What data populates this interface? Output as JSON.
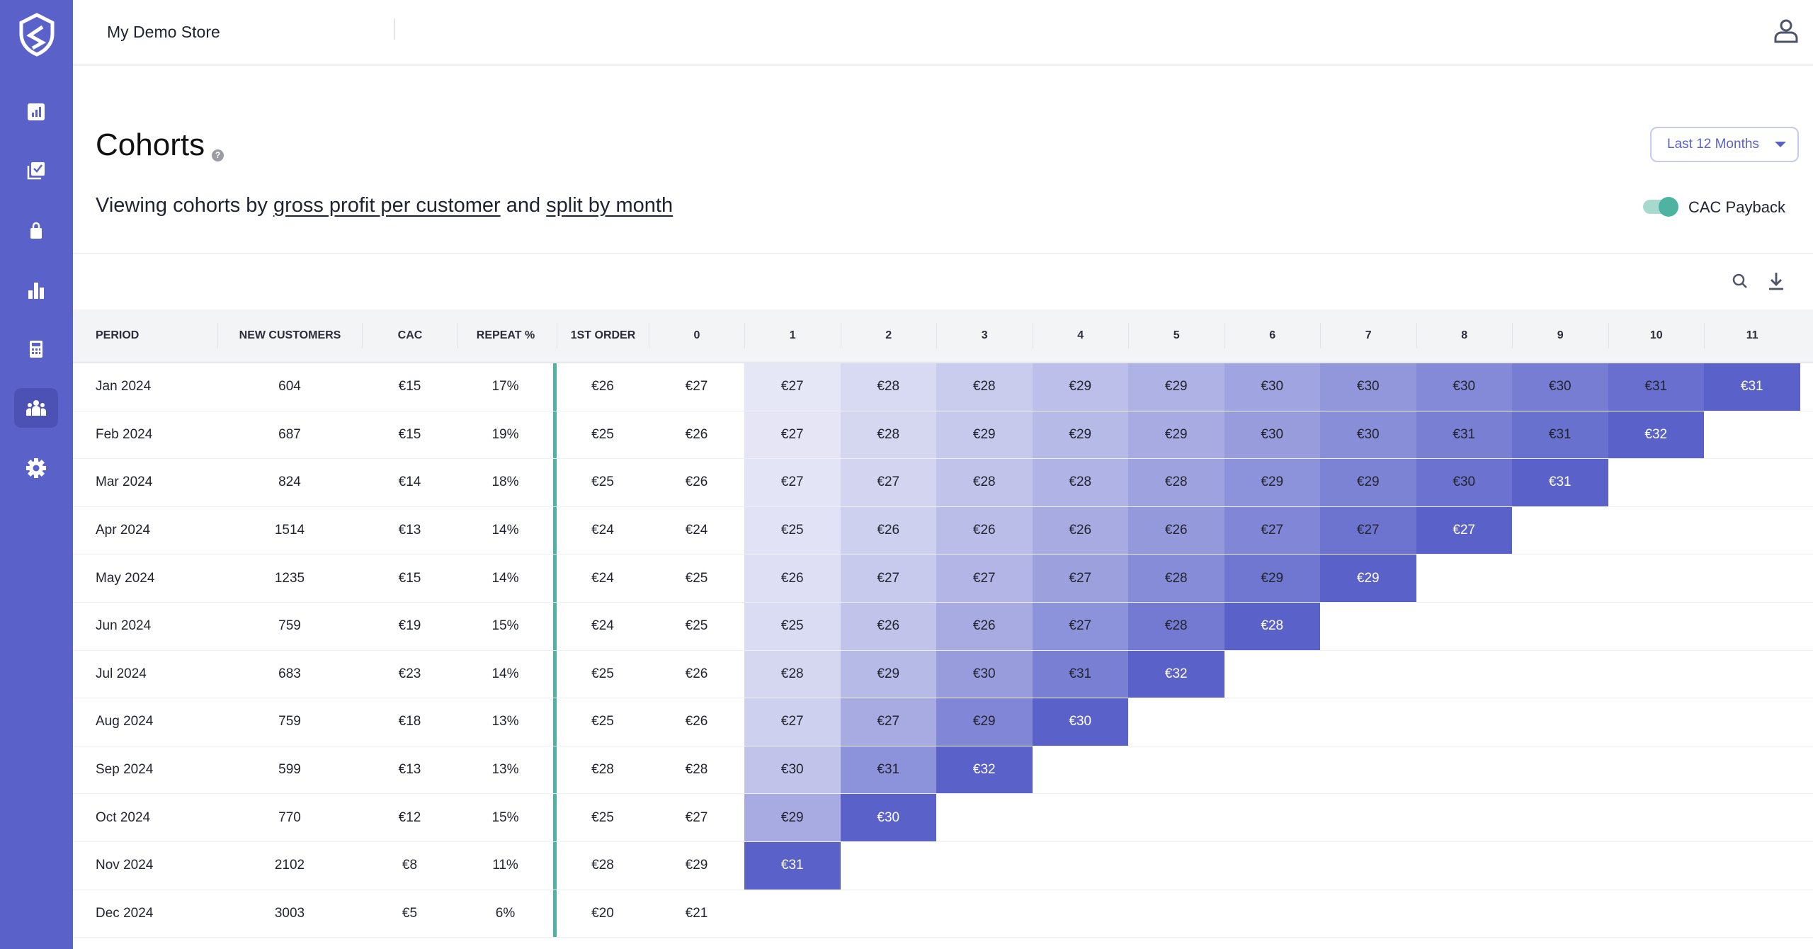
{
  "header": {
    "store_name": "My Demo Store"
  },
  "page": {
    "title": "Cohorts",
    "help": "?",
    "subtitle_prefix": "Viewing cohorts by ",
    "metric_link": "gross profit per customer",
    "subtitle_mid": " and ",
    "split_link": "split by month"
  },
  "date_range": {
    "selected": "Last 12 Months"
  },
  "toggle": {
    "label": "CAC Payback",
    "on": true
  },
  "table": {
    "columns": [
      "PERIOD",
      "NEW CUSTOMERS",
      "CAC",
      "REPEAT %",
      "1ST ORDER",
      "0",
      "1",
      "2",
      "3",
      "4",
      "5",
      "6",
      "7",
      "8",
      "9",
      "10",
      "11"
    ],
    "rows": [
      {
        "period": "Jan 2024",
        "new": "604",
        "cac": "€15",
        "repeat": "17%",
        "first": "€26",
        "m": [
          "€27",
          "€27",
          "€28",
          "€28",
          "€29",
          "€29",
          "€30",
          "€30",
          "€30",
          "€30",
          "€31",
          "€31"
        ]
      },
      {
        "period": "Feb 2024",
        "new": "687",
        "cac": "€15",
        "repeat": "19%",
        "first": "€25",
        "m": [
          "€26",
          "€27",
          "€28",
          "€29",
          "€29",
          "€29",
          "€30",
          "€30",
          "€31",
          "€31",
          "€32"
        ]
      },
      {
        "period": "Mar 2024",
        "new": "824",
        "cac": "€14",
        "repeat": "18%",
        "first": "€25",
        "m": [
          "€26",
          "€27",
          "€27",
          "€28",
          "€28",
          "€28",
          "€29",
          "€29",
          "€30",
          "€31"
        ]
      },
      {
        "period": "Apr 2024",
        "new": "1514",
        "cac": "€13",
        "repeat": "14%",
        "first": "€24",
        "m": [
          "€24",
          "€25",
          "€26",
          "€26",
          "€26",
          "€26",
          "€27",
          "€27",
          "€27"
        ]
      },
      {
        "period": "May 2024",
        "new": "1235",
        "cac": "€15",
        "repeat": "14%",
        "first": "€24",
        "m": [
          "€25",
          "€26",
          "€27",
          "€27",
          "€27",
          "€28",
          "€29",
          "€29"
        ]
      },
      {
        "period": "Jun 2024",
        "new": "759",
        "cac": "€19",
        "repeat": "15%",
        "first": "€24",
        "m": [
          "€25",
          "€25",
          "€26",
          "€26",
          "€27",
          "€28",
          "€28"
        ]
      },
      {
        "period": "Jul 2024",
        "new": "683",
        "cac": "€23",
        "repeat": "14%",
        "first": "€25",
        "m": [
          "€26",
          "€28",
          "€29",
          "€30",
          "€31",
          "€32"
        ]
      },
      {
        "period": "Aug 2024",
        "new": "759",
        "cac": "€18",
        "repeat": "13%",
        "first": "€25",
        "m": [
          "€26",
          "€27",
          "€27",
          "€29",
          "€30"
        ]
      },
      {
        "period": "Sep 2024",
        "new": "599",
        "cac": "€13",
        "repeat": "13%",
        "first": "€28",
        "m": [
          "€28",
          "€30",
          "€31",
          "€32"
        ]
      },
      {
        "period": "Oct 2024",
        "new": "770",
        "cac": "€12",
        "repeat": "15%",
        "first": "€25",
        "m": [
          "€27",
          "€29",
          "€30"
        ]
      },
      {
        "period": "Nov 2024",
        "new": "2102",
        "cac": "€8",
        "repeat": "11%",
        "first": "€28",
        "m": [
          "€29",
          "€31"
        ]
      },
      {
        "period": "Dec 2024",
        "new": "3003",
        "cac": "€5",
        "repeat": "6%",
        "first": "€20",
        "m": [
          "€21"
        ]
      }
    ]
  },
  "colors": {
    "brand": "#5a62c9",
    "accent": "#4fb3a1",
    "heat_light": "#f4f4fb",
    "heat_dark": "#5a62c9"
  }
}
